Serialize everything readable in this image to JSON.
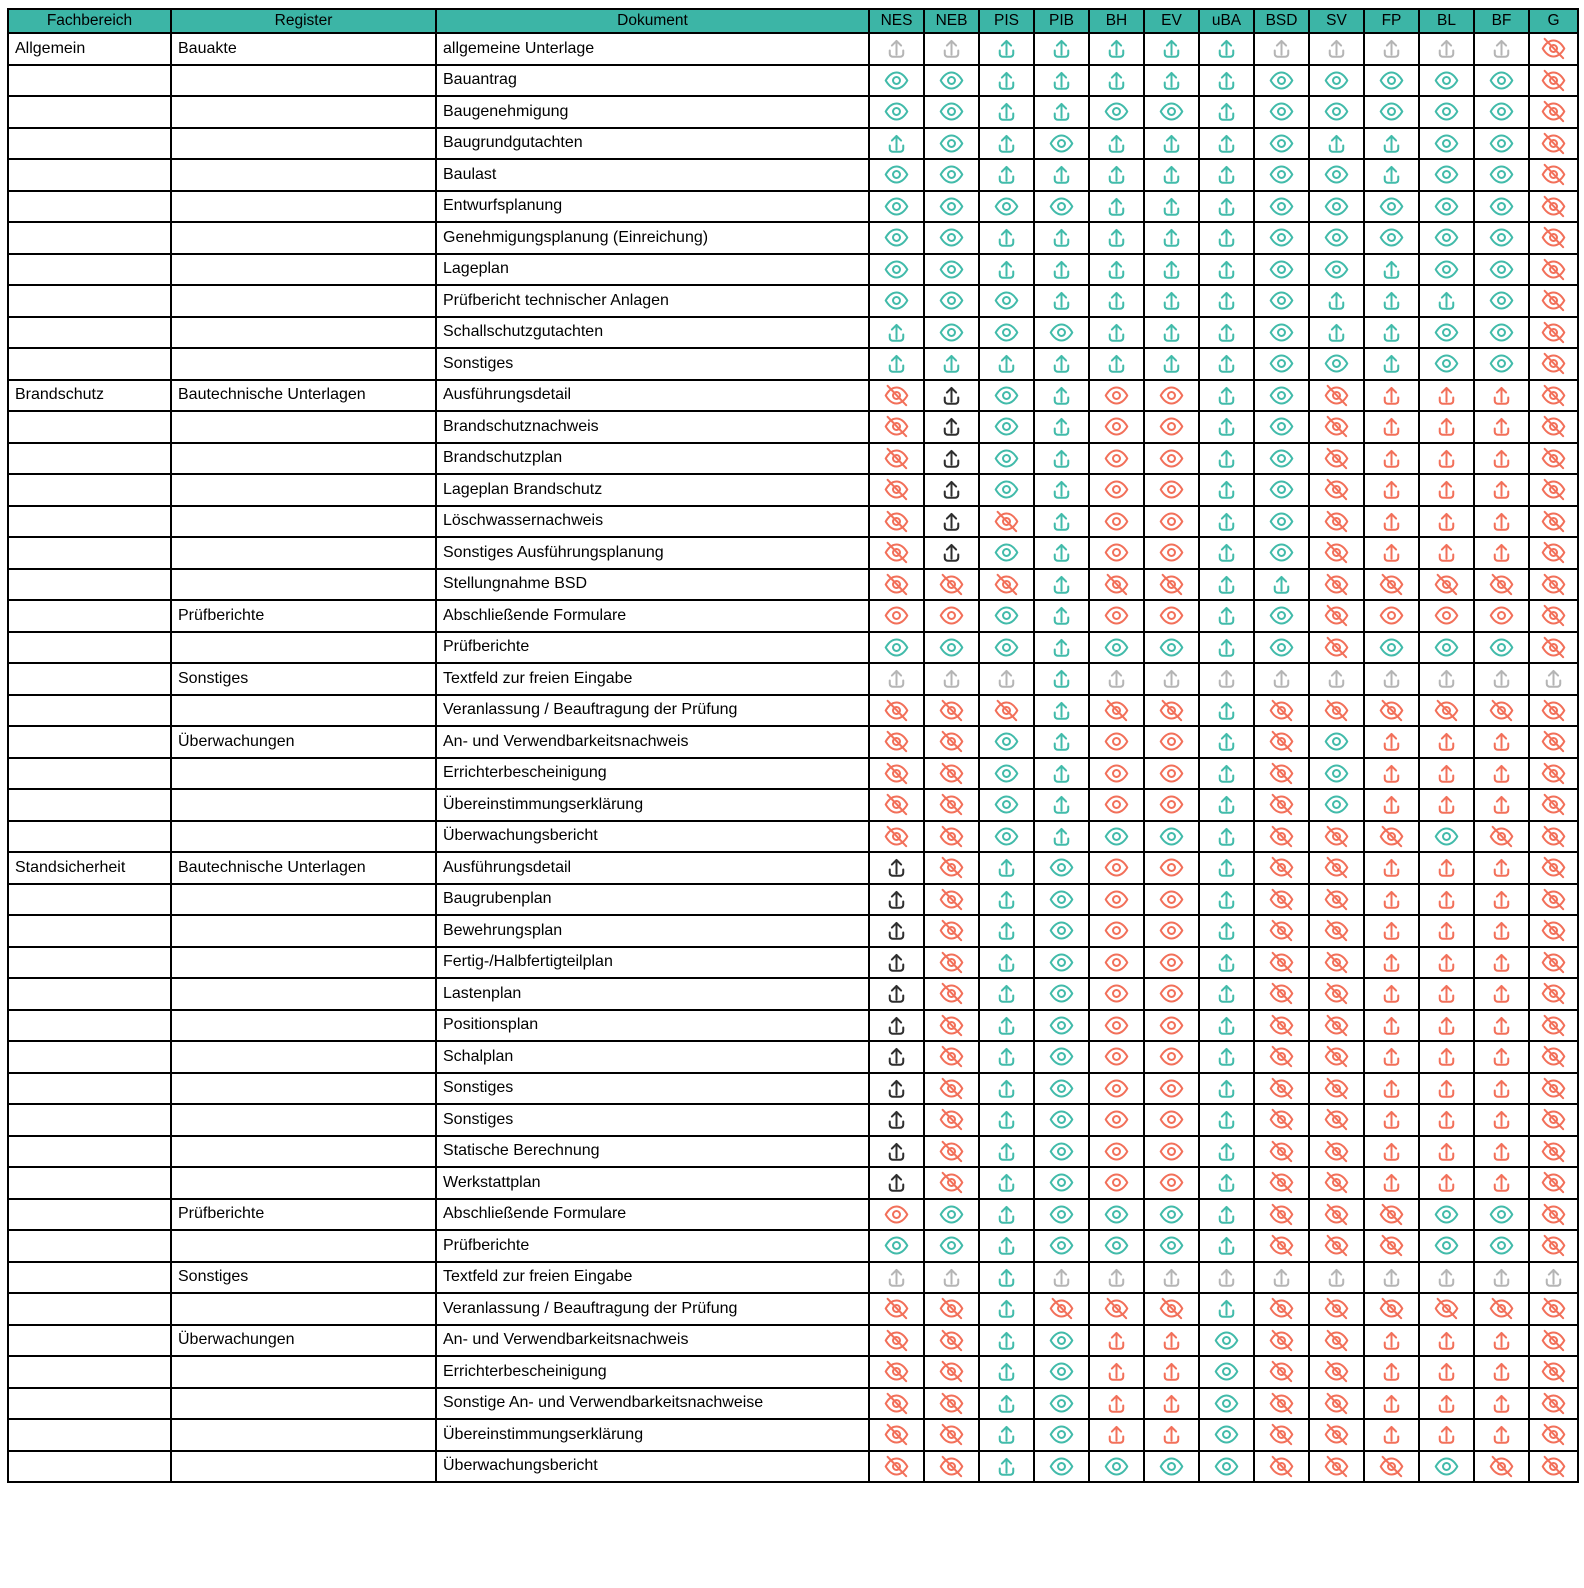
{
  "header": {
    "columns": [
      "Fachbereich",
      "Register",
      "Dokument",
      "NES",
      "NEB",
      "PIS",
      "PIB",
      "BH",
      "EV",
      "uBA",
      "BSD",
      "SV",
      "FP",
      "BL",
      "BF",
      "G"
    ]
  },
  "colors": {
    "header_bg": "#3CB5A6",
    "teal": "#42BBAA",
    "red": "#F2705A",
    "gray": "#B5B5B5",
    "black": "#2E2E2E",
    "border": "#000000"
  },
  "icon_legend": {
    "upload": "upload-icon",
    "eye": "eye-icon",
    "eyeoff": "eye-off-icon"
  },
  "rows": [
    {
      "fachbereich": "Allgemein",
      "register": "Bauakte",
      "dokument": "allgemeine Unterlage",
      "cells": [
        "upload-gray",
        "upload-gray",
        "upload-teal",
        "upload-teal",
        "upload-teal",
        "upload-teal",
        "upload-teal",
        "upload-gray",
        "upload-gray",
        "upload-gray",
        "upload-gray",
        "upload-gray",
        "eyeoff-red"
      ]
    },
    {
      "fachbereich": "",
      "register": "",
      "dokument": "Bauantrag",
      "cells": [
        "eye-teal",
        "eye-teal",
        "upload-teal",
        "upload-teal",
        "upload-teal",
        "upload-teal",
        "upload-teal",
        "eye-teal",
        "eye-teal",
        "eye-teal",
        "eye-teal",
        "eye-teal",
        "eyeoff-red"
      ]
    },
    {
      "fachbereich": "",
      "register": "",
      "dokument": "Baugenehmigung",
      "cells": [
        "eye-teal",
        "eye-teal",
        "upload-teal",
        "upload-teal",
        "eye-teal",
        "eye-teal",
        "upload-teal",
        "eye-teal",
        "eye-teal",
        "eye-teal",
        "eye-teal",
        "eye-teal",
        "eyeoff-red"
      ]
    },
    {
      "fachbereich": "",
      "register": "",
      "dokument": "Baugrundgutachten",
      "cells": [
        "upload-teal",
        "eye-teal",
        "upload-teal",
        "eye-teal",
        "upload-teal",
        "upload-teal",
        "upload-teal",
        "eye-teal",
        "upload-teal",
        "upload-teal",
        "eye-teal",
        "eye-teal",
        "eyeoff-red"
      ]
    },
    {
      "fachbereich": "",
      "register": "",
      "dokument": "Baulast",
      "cells": [
        "eye-teal",
        "eye-teal",
        "upload-teal",
        "upload-teal",
        "upload-teal",
        "upload-teal",
        "upload-teal",
        "eye-teal",
        "eye-teal",
        "upload-teal",
        "eye-teal",
        "eye-teal",
        "eyeoff-red"
      ]
    },
    {
      "fachbereich": "",
      "register": "",
      "dokument": "Entwurfsplanung",
      "cells": [
        "eye-teal",
        "eye-teal",
        "eye-teal",
        "eye-teal",
        "upload-teal",
        "upload-teal",
        "upload-teal",
        "eye-teal",
        "eye-teal",
        "eye-teal",
        "eye-teal",
        "eye-teal",
        "eyeoff-red"
      ]
    },
    {
      "fachbereich": "",
      "register": "",
      "dokument": "Genehmigungsplanung (Einreichung)",
      "cells": [
        "eye-teal",
        "eye-teal",
        "upload-teal",
        "upload-teal",
        "upload-teal",
        "upload-teal",
        "upload-teal",
        "eye-teal",
        "eye-teal",
        "eye-teal",
        "eye-teal",
        "eye-teal",
        "eyeoff-red"
      ]
    },
    {
      "fachbereich": "",
      "register": "",
      "dokument": "Lageplan",
      "cells": [
        "eye-teal",
        "eye-teal",
        "upload-teal",
        "upload-teal",
        "upload-teal",
        "upload-teal",
        "upload-teal",
        "eye-teal",
        "eye-teal",
        "upload-teal",
        "eye-teal",
        "eye-teal",
        "eyeoff-red"
      ]
    },
    {
      "fachbereich": "",
      "register": "",
      "dokument": "Prüfbericht technischer Anlagen",
      "cells": [
        "eye-teal",
        "eye-teal",
        "eye-teal",
        "upload-teal",
        "upload-teal",
        "upload-teal",
        "upload-teal",
        "eye-teal",
        "upload-teal",
        "upload-teal",
        "upload-teal",
        "eye-teal",
        "eyeoff-red"
      ]
    },
    {
      "fachbereich": "",
      "register": "",
      "dokument": "Schallschutzgutachten",
      "cells": [
        "upload-teal",
        "eye-teal",
        "eye-teal",
        "eye-teal",
        "upload-teal",
        "upload-teal",
        "upload-teal",
        "eye-teal",
        "upload-teal",
        "upload-teal",
        "eye-teal",
        "eye-teal",
        "eyeoff-red"
      ]
    },
    {
      "fachbereich": "",
      "register": "",
      "dokument": "Sonstiges",
      "cells": [
        "upload-teal",
        "upload-teal",
        "upload-teal",
        "upload-teal",
        "upload-teal",
        "upload-teal",
        "upload-teal",
        "eye-teal",
        "eye-teal",
        "upload-teal",
        "eye-teal",
        "eye-teal",
        "eyeoff-red"
      ]
    },
    {
      "fachbereich": "Brandschutz",
      "register": "Bautechnische Unterlagen",
      "dokument": "Ausführungsdetail",
      "cells": [
        "eyeoff-red",
        "upload-black",
        "eye-teal",
        "upload-teal",
        "eye-red",
        "eye-red",
        "upload-teal",
        "eye-teal",
        "eyeoff-red",
        "upload-red",
        "upload-red",
        "upload-red",
        "eyeoff-red"
      ]
    },
    {
      "fachbereich": "",
      "register": "",
      "dokument": "Brandschutznachweis",
      "cells": [
        "eyeoff-red",
        "upload-black",
        "eye-teal",
        "upload-teal",
        "eye-red",
        "eye-red",
        "upload-teal",
        "eye-teal",
        "eyeoff-red",
        "upload-red",
        "upload-red",
        "upload-red",
        "eyeoff-red"
      ]
    },
    {
      "fachbereich": "",
      "register": "",
      "dokument": "Brandschutzplan",
      "cells": [
        "eyeoff-red",
        "upload-black",
        "eye-teal",
        "upload-teal",
        "eye-red",
        "eye-red",
        "upload-teal",
        "eye-teal",
        "eyeoff-red",
        "upload-red",
        "upload-red",
        "upload-red",
        "eyeoff-red"
      ]
    },
    {
      "fachbereich": "",
      "register": "",
      "dokument": "Lageplan Brandschutz",
      "cells": [
        "eyeoff-red",
        "upload-black",
        "eye-teal",
        "upload-teal",
        "eye-red",
        "eye-red",
        "upload-teal",
        "eye-teal",
        "eyeoff-red",
        "upload-red",
        "upload-red",
        "upload-red",
        "eyeoff-red"
      ]
    },
    {
      "fachbereich": "",
      "register": "",
      "dokument": "Löschwassernachweis",
      "cells": [
        "eyeoff-red",
        "upload-black",
        "eyeoff-red",
        "upload-teal",
        "eye-red",
        "eye-red",
        "upload-teal",
        "eye-teal",
        "eyeoff-red",
        "upload-red",
        "upload-red",
        "upload-red",
        "eyeoff-red"
      ]
    },
    {
      "fachbereich": "",
      "register": "",
      "dokument": "Sonstiges Ausführungsplanung",
      "cells": [
        "eyeoff-red",
        "upload-black",
        "eye-teal",
        "upload-teal",
        "eye-red",
        "eye-red",
        "upload-teal",
        "eye-teal",
        "eyeoff-red",
        "upload-red",
        "upload-red",
        "upload-red",
        "eyeoff-red"
      ]
    },
    {
      "fachbereich": "",
      "register": "",
      "dokument": "Stellungnahme BSD",
      "cells": [
        "eyeoff-red",
        "eyeoff-red",
        "eyeoff-red",
        "upload-teal",
        "eyeoff-red",
        "eyeoff-red",
        "upload-teal",
        "upload-teal",
        "eyeoff-red",
        "eyeoff-red",
        "eyeoff-red",
        "eyeoff-red",
        "eyeoff-red"
      ]
    },
    {
      "fachbereich": "",
      "register": "Prüfberichte",
      "dokument": "Abschließende Formulare",
      "cells": [
        "eye-red",
        "eye-red",
        "eye-teal",
        "upload-teal",
        "eye-red",
        "eye-red",
        "upload-teal",
        "eye-teal",
        "eyeoff-red",
        "eye-red",
        "eye-red",
        "eye-red",
        "eyeoff-red"
      ]
    },
    {
      "fachbereich": "",
      "register": "",
      "dokument": "Prüfberichte",
      "cells": [
        "eye-teal",
        "eye-teal",
        "eye-teal",
        "upload-teal",
        "eye-teal",
        "eye-teal",
        "upload-teal",
        "eye-teal",
        "eyeoff-red",
        "eye-teal",
        "eye-teal",
        "eye-teal",
        "eyeoff-red"
      ]
    },
    {
      "fachbereich": "",
      "register": "Sonstiges",
      "dokument": "Textfeld zur freien Eingabe",
      "cells": [
        "upload-gray",
        "upload-gray",
        "upload-gray",
        "upload-teal",
        "upload-gray",
        "upload-gray",
        "upload-gray",
        "upload-gray",
        "upload-gray",
        "upload-gray",
        "upload-gray",
        "upload-gray",
        "upload-gray"
      ]
    },
    {
      "fachbereich": "",
      "register": "",
      "dokument": "Veranlassung / Beauftragung der Prüfung",
      "cells": [
        "eyeoff-red",
        "eyeoff-red",
        "eyeoff-red",
        "upload-teal",
        "eyeoff-red",
        "eyeoff-red",
        "upload-teal",
        "eyeoff-red",
        "eyeoff-red",
        "eyeoff-red",
        "eyeoff-red",
        "eyeoff-red",
        "eyeoff-red"
      ]
    },
    {
      "fachbereich": "",
      "register": "Überwachungen",
      "dokument": "An- und Verwendbarkeitsnachweis",
      "cells": [
        "eyeoff-red",
        "eyeoff-red",
        "eye-teal",
        "upload-teal",
        "eye-red",
        "eye-red",
        "upload-teal",
        "eyeoff-red",
        "eye-teal",
        "upload-red",
        "upload-red",
        "upload-red",
        "eyeoff-red"
      ]
    },
    {
      "fachbereich": "",
      "register": "",
      "dokument": "Errichterbescheinigung",
      "cells": [
        "eyeoff-red",
        "eyeoff-red",
        "eye-teal",
        "upload-teal",
        "eye-red",
        "eye-red",
        "upload-teal",
        "eyeoff-red",
        "eye-teal",
        "upload-red",
        "upload-red",
        "upload-red",
        "eyeoff-red"
      ]
    },
    {
      "fachbereich": "",
      "register": "",
      "dokument": "Übereinstimmungserklärung",
      "cells": [
        "eyeoff-red",
        "eyeoff-red",
        "eye-teal",
        "upload-teal",
        "eye-red",
        "eye-red",
        "upload-teal",
        "eyeoff-red",
        "eye-teal",
        "upload-red",
        "upload-red",
        "upload-red",
        "eyeoff-red"
      ]
    },
    {
      "fachbereich": "",
      "register": "",
      "dokument": "Überwachungsbericht",
      "cells": [
        "eyeoff-red",
        "eyeoff-red",
        "eye-teal",
        "upload-teal",
        "eye-teal",
        "eye-teal",
        "upload-teal",
        "eyeoff-red",
        "eyeoff-red",
        "eyeoff-red",
        "eye-teal",
        "eyeoff-red",
        "eyeoff-red"
      ]
    },
    {
      "fachbereich": "Standsicherheit",
      "register": "Bautechnische Unterlagen",
      "dokument": "Ausführungsdetail",
      "cells": [
        "upload-black",
        "eyeoff-red",
        "upload-teal",
        "eye-teal",
        "eye-red",
        "eye-red",
        "upload-teal",
        "eyeoff-red",
        "eyeoff-red",
        "upload-red",
        "upload-red",
        "upload-red",
        "eyeoff-red"
      ]
    },
    {
      "fachbereich": "",
      "register": "",
      "dokument": "Baugrubenplan",
      "cells": [
        "upload-black",
        "eyeoff-red",
        "upload-teal",
        "eye-teal",
        "eye-red",
        "eye-red",
        "upload-teal",
        "eyeoff-red",
        "eyeoff-red",
        "upload-red",
        "upload-red",
        "upload-red",
        "eyeoff-red"
      ]
    },
    {
      "fachbereich": "",
      "register": "",
      "dokument": "Bewehrungsplan",
      "cells": [
        "upload-black",
        "eyeoff-red",
        "upload-teal",
        "eye-teal",
        "eye-red",
        "eye-red",
        "upload-teal",
        "eyeoff-red",
        "eyeoff-red",
        "upload-red",
        "upload-red",
        "upload-red",
        "eyeoff-red"
      ]
    },
    {
      "fachbereich": "",
      "register": "",
      "dokument": "Fertig-/Halbfertigteilplan",
      "cells": [
        "upload-black",
        "eyeoff-red",
        "upload-teal",
        "eye-teal",
        "eye-red",
        "eye-red",
        "upload-teal",
        "eyeoff-red",
        "eyeoff-red",
        "upload-red",
        "upload-red",
        "upload-red",
        "eyeoff-red"
      ]
    },
    {
      "fachbereich": "",
      "register": "",
      "dokument": "Lastenplan",
      "cells": [
        "upload-black",
        "eyeoff-red",
        "upload-teal",
        "eye-teal",
        "eye-red",
        "eye-red",
        "upload-teal",
        "eyeoff-red",
        "eyeoff-red",
        "upload-red",
        "upload-red",
        "upload-red",
        "eyeoff-red"
      ]
    },
    {
      "fachbereich": "",
      "register": "",
      "dokument": "Positionsplan",
      "cells": [
        "upload-black",
        "eyeoff-red",
        "upload-teal",
        "eye-teal",
        "eye-red",
        "eye-red",
        "upload-teal",
        "eyeoff-red",
        "eyeoff-red",
        "upload-red",
        "upload-red",
        "upload-red",
        "eyeoff-red"
      ]
    },
    {
      "fachbereich": "",
      "register": "",
      "dokument": "Schalplan",
      "cells": [
        "upload-black",
        "eyeoff-red",
        "upload-teal",
        "eye-teal",
        "eye-red",
        "eye-red",
        "upload-teal",
        "eyeoff-red",
        "eyeoff-red",
        "upload-red",
        "upload-red",
        "upload-red",
        "eyeoff-red"
      ]
    },
    {
      "fachbereich": "",
      "register": "",
      "dokument": "Sonstiges",
      "cells": [
        "upload-black",
        "eyeoff-red",
        "upload-teal",
        "eye-teal",
        "eye-red",
        "eye-red",
        "upload-teal",
        "eyeoff-red",
        "eyeoff-red",
        "upload-red",
        "upload-red",
        "upload-red",
        "eyeoff-red"
      ]
    },
    {
      "fachbereich": "",
      "register": "",
      "dokument": "Sonstiges",
      "cells": [
        "upload-black",
        "eyeoff-red",
        "upload-teal",
        "eye-teal",
        "eye-red",
        "eye-red",
        "upload-teal",
        "eyeoff-red",
        "eyeoff-red",
        "upload-red",
        "upload-red",
        "upload-red",
        "eyeoff-red"
      ]
    },
    {
      "fachbereich": "",
      "register": "",
      "dokument": "Statische Berechnung",
      "cells": [
        "upload-black",
        "eyeoff-red",
        "upload-teal",
        "eye-teal",
        "eye-red",
        "eye-red",
        "upload-teal",
        "eyeoff-red",
        "eyeoff-red",
        "upload-red",
        "upload-red",
        "upload-red",
        "eyeoff-red"
      ]
    },
    {
      "fachbereich": "",
      "register": "",
      "dokument": "Werkstattplan",
      "cells": [
        "upload-black",
        "eyeoff-red",
        "upload-teal",
        "eye-teal",
        "eye-red",
        "eye-red",
        "upload-teal",
        "eyeoff-red",
        "eyeoff-red",
        "upload-red",
        "upload-red",
        "upload-red",
        "eyeoff-red"
      ]
    },
    {
      "fachbereich": "",
      "register": "Prüfberichte",
      "dokument": "Abschließende Formulare",
      "cells": [
        "eye-red",
        "eye-teal",
        "upload-teal",
        "eye-teal",
        "eye-teal",
        "eye-teal",
        "upload-teal",
        "eyeoff-red",
        "eyeoff-red",
        "eyeoff-red",
        "eye-teal",
        "eye-teal",
        "eyeoff-red"
      ]
    },
    {
      "fachbereich": "",
      "register": "",
      "dokument": "Prüfberichte",
      "cells": [
        "eye-teal",
        "eye-teal",
        "upload-teal",
        "eye-teal",
        "eye-teal",
        "eye-teal",
        "upload-teal",
        "eyeoff-red",
        "eyeoff-red",
        "eyeoff-red",
        "eye-teal",
        "eye-teal",
        "eyeoff-red"
      ]
    },
    {
      "fachbereich": "",
      "register": "Sonstiges",
      "dokument": "Textfeld zur freien Eingabe",
      "cells": [
        "upload-gray",
        "upload-gray",
        "upload-teal",
        "upload-gray",
        "upload-gray",
        "upload-gray",
        "upload-gray",
        "upload-gray",
        "upload-gray",
        "upload-gray",
        "upload-gray",
        "upload-gray",
        "upload-gray"
      ]
    },
    {
      "fachbereich": "",
      "register": "",
      "dokument": "Veranlassung / Beauftragung der Prüfung",
      "cells": [
        "eyeoff-red",
        "eyeoff-red",
        "upload-teal",
        "eyeoff-red",
        "eyeoff-red",
        "eyeoff-red",
        "upload-teal",
        "eyeoff-red",
        "eyeoff-red",
        "eyeoff-red",
        "eyeoff-red",
        "eyeoff-red",
        "eyeoff-red"
      ]
    },
    {
      "fachbereich": "",
      "register": "Überwachungen",
      "dokument": "An- und Verwendbarkeitsnachweis",
      "cells": [
        "eyeoff-red",
        "eyeoff-red",
        "upload-teal",
        "eye-teal",
        "upload-red",
        "upload-red",
        "eye-teal",
        "eyeoff-red",
        "eyeoff-red",
        "upload-red",
        "upload-red",
        "upload-red",
        "eyeoff-red"
      ]
    },
    {
      "fachbereich": "",
      "register": "",
      "dokument": "Errichterbescheinigung",
      "cells": [
        "eyeoff-red",
        "eyeoff-red",
        "upload-teal",
        "eye-teal",
        "upload-red",
        "upload-red",
        "eye-teal",
        "eyeoff-red",
        "eyeoff-red",
        "upload-red",
        "upload-red",
        "upload-red",
        "eyeoff-red"
      ]
    },
    {
      "fachbereich": "",
      "register": "",
      "dokument": "Sonstige An- und Verwendbarkeitsnachweise",
      "cells": [
        "eyeoff-red",
        "eyeoff-red",
        "upload-teal",
        "eye-teal",
        "upload-red",
        "upload-red",
        "eye-teal",
        "eyeoff-red",
        "eyeoff-red",
        "upload-red",
        "upload-red",
        "upload-red",
        "eyeoff-red"
      ]
    },
    {
      "fachbereich": "",
      "register": "",
      "dokument": "Übereinstimmungserklärung",
      "cells": [
        "eyeoff-red",
        "eyeoff-red",
        "upload-teal",
        "eye-teal",
        "upload-red",
        "upload-red",
        "eye-teal",
        "eyeoff-red",
        "eyeoff-red",
        "upload-red",
        "upload-red",
        "upload-red",
        "eyeoff-red"
      ]
    },
    {
      "fachbereich": "",
      "register": "",
      "dokument": "Überwachungsbericht",
      "cells": [
        "eyeoff-red",
        "eyeoff-red",
        "upload-teal",
        "eye-teal",
        "eye-teal",
        "eye-teal",
        "eye-teal",
        "eyeoff-red",
        "eyeoff-red",
        "eyeoff-red",
        "eye-teal",
        "eyeoff-red",
        "eyeoff-red"
      ]
    }
  ]
}
